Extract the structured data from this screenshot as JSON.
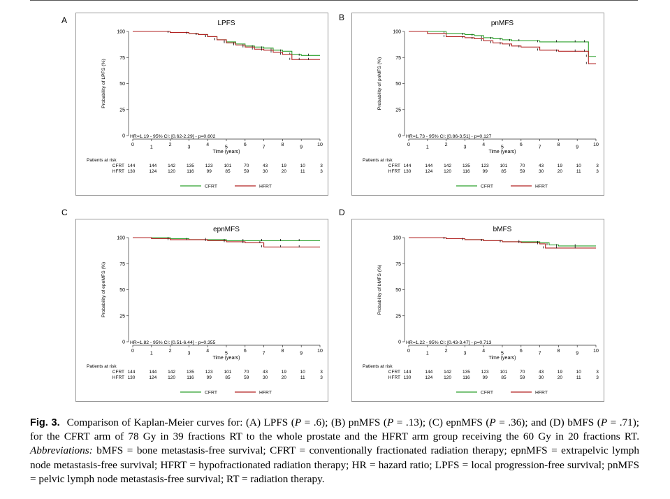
{
  "colors": {
    "cfrt": "#2ca02c",
    "hfrt": "#b22222",
    "frame": "#999999",
    "text": "#000000"
  },
  "chart_data": [
    {
      "type": "line",
      "panel_letter": "A",
      "title": "LPFS",
      "xlabel": "Time (years)",
      "ylabel": "Probability of LPFS (%)",
      "xlim": [
        0,
        10
      ],
      "ylim": [
        0,
        100
      ],
      "xticks": [
        "0",
        "1",
        "2",
        "3",
        "4",
        "5",
        "6",
        "7",
        "8",
        "9",
        "10"
      ],
      "yticks": [
        "0",
        "25",
        "50",
        "75",
        "100"
      ],
      "annotation": "HR=1.19 - 95% CI: [0.62-2.29] - p=0.602",
      "series": [
        {
          "name": "CFRT",
          "x": [
            0,
            1,
            2,
            3,
            3.5,
            4,
            4.5,
            5,
            5.5,
            6,
            6.5,
            7,
            7.5,
            8,
            8.5,
            9,
            9.5,
            10
          ],
          "y": [
            100,
            100,
            99,
            98,
            97,
            95,
            92,
            90,
            88,
            86,
            85,
            84,
            82,
            81,
            78,
            77,
            77,
            77
          ]
        },
        {
          "name": "HFRT",
          "x": [
            0,
            1,
            2,
            3,
            3.5,
            4,
            4.5,
            5,
            5.5,
            6,
            6.5,
            7,
            7.5,
            8,
            8.5,
            9,
            9.5,
            10
          ],
          "y": [
            100,
            100,
            99,
            98,
            97,
            95,
            92,
            89,
            87,
            85,
            83,
            82,
            80,
            78,
            73,
            73,
            73,
            73
          ]
        }
      ],
      "risk_table": {
        "label": "Patients at risk",
        "rows": [
          {
            "name": "CFRT",
            "values": [
              "144",
              "144",
              "142",
              "135",
              "123",
              "101",
              "70",
              "43",
              "19",
              "10",
              "3"
            ]
          },
          {
            "name": "HFRT",
            "values": [
              "130",
              "124",
              "120",
              "116",
              "99",
              "85",
              "59",
              "30",
              "20",
              "11",
              "3"
            ]
          }
        ]
      },
      "legend": [
        "CFRT",
        "HFRT"
      ]
    },
    {
      "type": "line",
      "panel_letter": "B",
      "title": "pnMFS",
      "xlabel": "Time (years)",
      "ylabel": "Probability of pnMFS (%)",
      "xlim": [
        0,
        10
      ],
      "ylim": [
        0,
        100
      ],
      "xticks": [
        "0",
        "1",
        "2",
        "3",
        "4",
        "5",
        "6",
        "7",
        "8",
        "9",
        "10"
      ],
      "yticks": [
        "0",
        "25",
        "50",
        "75",
        "100"
      ],
      "annotation": "HR=1.73 - 95% CI: [0.86-3.51] - p=0.127",
      "series": [
        {
          "name": "CFRT",
          "x": [
            0,
            1,
            2,
            3,
            3.5,
            4,
            4.5,
            5,
            5.5,
            6,
            7,
            8,
            9,
            9.5,
            9.6,
            10
          ],
          "y": [
            100,
            100,
            98,
            97,
            96,
            94,
            93,
            92,
            91,
            91,
            90,
            90,
            90,
            90,
            76,
            76
          ]
        },
        {
          "name": "HFRT",
          "x": [
            0,
            1,
            2,
            3,
            3.5,
            4,
            4.5,
            5,
            5.5,
            6,
            7,
            8,
            9,
            9.5,
            9.6,
            10
          ],
          "y": [
            100,
            98,
            95,
            94,
            93,
            91,
            89,
            88,
            86,
            85,
            82,
            81,
            81,
            81,
            69,
            69
          ]
        }
      ],
      "risk_table": {
        "label": "Patients at risk",
        "rows": [
          {
            "name": "CFRT",
            "values": [
              "144",
              "144",
              "142",
              "135",
              "123",
              "101",
              "70",
              "43",
              "19",
              "10",
              "3"
            ]
          },
          {
            "name": "HFRT",
            "values": [
              "130",
              "124",
              "120",
              "116",
              "99",
              "85",
              "59",
              "30",
              "20",
              "11",
              "3"
            ]
          }
        ]
      },
      "legend": [
        "CFRT",
        "HFRT"
      ]
    },
    {
      "type": "line",
      "panel_letter": "C",
      "title": "epnMFS",
      "xlabel": "Time (years)",
      "ylabel": "Probability of epnMFS (%)",
      "xlim": [
        0,
        10
      ],
      "ylim": [
        0,
        100
      ],
      "xticks": [
        "0",
        "1",
        "2",
        "3",
        "4",
        "5",
        "6",
        "7",
        "8",
        "9",
        "10"
      ],
      "yticks": [
        "0",
        "25",
        "50",
        "75",
        "100"
      ],
      "annotation": "HR=1.82 - 95% CI: [0.51-6.44] - p=0.355",
      "series": [
        {
          "name": "CFRT",
          "x": [
            0,
            1,
            2,
            3,
            4,
            5,
            6,
            7,
            8,
            9,
            10
          ],
          "y": [
            100,
            100,
            99,
            98,
            98,
            97,
            97,
            97,
            97,
            97,
            97
          ]
        },
        {
          "name": "HFRT",
          "x": [
            0,
            1,
            2,
            3,
            4,
            5,
            6,
            6.9,
            7,
            8,
            9,
            10
          ],
          "y": [
            100,
            99,
            98,
            98,
            97,
            96,
            95,
            95,
            91,
            91,
            91,
            91
          ]
        }
      ],
      "risk_table": {
        "label": "Patients at risk",
        "rows": [
          {
            "name": "CFRT",
            "values": [
              "144",
              "144",
              "142",
              "135",
              "123",
              "101",
              "70",
              "43",
              "19",
              "10",
              "3"
            ]
          },
          {
            "name": "HFRT",
            "values": [
              "130",
              "124",
              "120",
              "116",
              "99",
              "85",
              "59",
              "30",
              "20",
              "11",
              "3"
            ]
          }
        ]
      },
      "legend": [
        "CFRT",
        "HFRT"
      ]
    },
    {
      "type": "line",
      "panel_letter": "D",
      "title": "bMFS",
      "xlabel": "Time (years)",
      "ylabel": "Probability of bMFS (%)",
      "xlim": [
        0,
        10
      ],
      "ylim": [
        0,
        100
      ],
      "xticks": [
        "0",
        "1",
        "2",
        "3",
        "4",
        "5",
        "6",
        "7",
        "8",
        "9",
        "10"
      ],
      "yticks": [
        "0",
        "25",
        "50",
        "75",
        "100"
      ],
      "annotation": "HR=1.22 - 95% CI: [0.43-3.47] - p=0.713",
      "series": [
        {
          "name": "CFRT",
          "x": [
            0,
            1,
            2,
            3,
            4,
            5,
            6,
            7,
            7.5,
            8,
            9,
            10
          ],
          "y": [
            100,
            100,
            99,
            98,
            97,
            96,
            96,
            95,
            93,
            92,
            92,
            92
          ]
        },
        {
          "name": "HFRT",
          "x": [
            0,
            1,
            2,
            3,
            4,
            5,
            6,
            7,
            7.3,
            8,
            9,
            10
          ],
          "y": [
            100,
            100,
            99,
            98,
            97,
            96,
            95,
            94,
            90,
            90,
            90,
            90
          ]
        }
      ],
      "risk_table": {
        "label": "Patients at risk",
        "rows": [
          {
            "name": "CFRT",
            "values": [
              "144",
              "144",
              "142",
              "135",
              "123",
              "101",
              "70",
              "43",
              "19",
              "10",
              "3"
            ]
          },
          {
            "name": "HFRT",
            "values": [
              "130",
              "124",
              "120",
              "116",
              "99",
              "85",
              "59",
              "30",
              "20",
              "11",
              "3"
            ]
          }
        ]
      },
      "legend": [
        "CFRT",
        "HFRT"
      ]
    }
  ],
  "caption": {
    "label": "Fig. 3.",
    "t1": "Comparison of Kaplan-Meier curves for: (A) LPFS (",
    "p1": "P",
    "t2": " = .6); (B) pnMFS (",
    "p2": "P",
    "t3": " = .13); (C) epnMFS (",
    "p3": "P",
    "t4": " = .36); and (D) bMFS (",
    "p4": "P",
    "t5": " = .71); for the CFRT arm of 78 Gy in 39 fractions RT to the whole prostate and the HFRT arm group receiving the 60 Gy in 20 fractions RT. ",
    "abbr_label": "Abbreviations:",
    "t6": " bMFS = bone metastasis-free survival; CFRT = conventionally fractionated radiation therapy; epnMFS = extrapelvic lymph node metastasis-free survival; HFRT = hypofractionated radiation therapy; HR = hazard ratio; LPFS = local progression-free survival; pnMFS = pelvic lymph node metastasis-free survival; RT = radiation therapy."
  }
}
